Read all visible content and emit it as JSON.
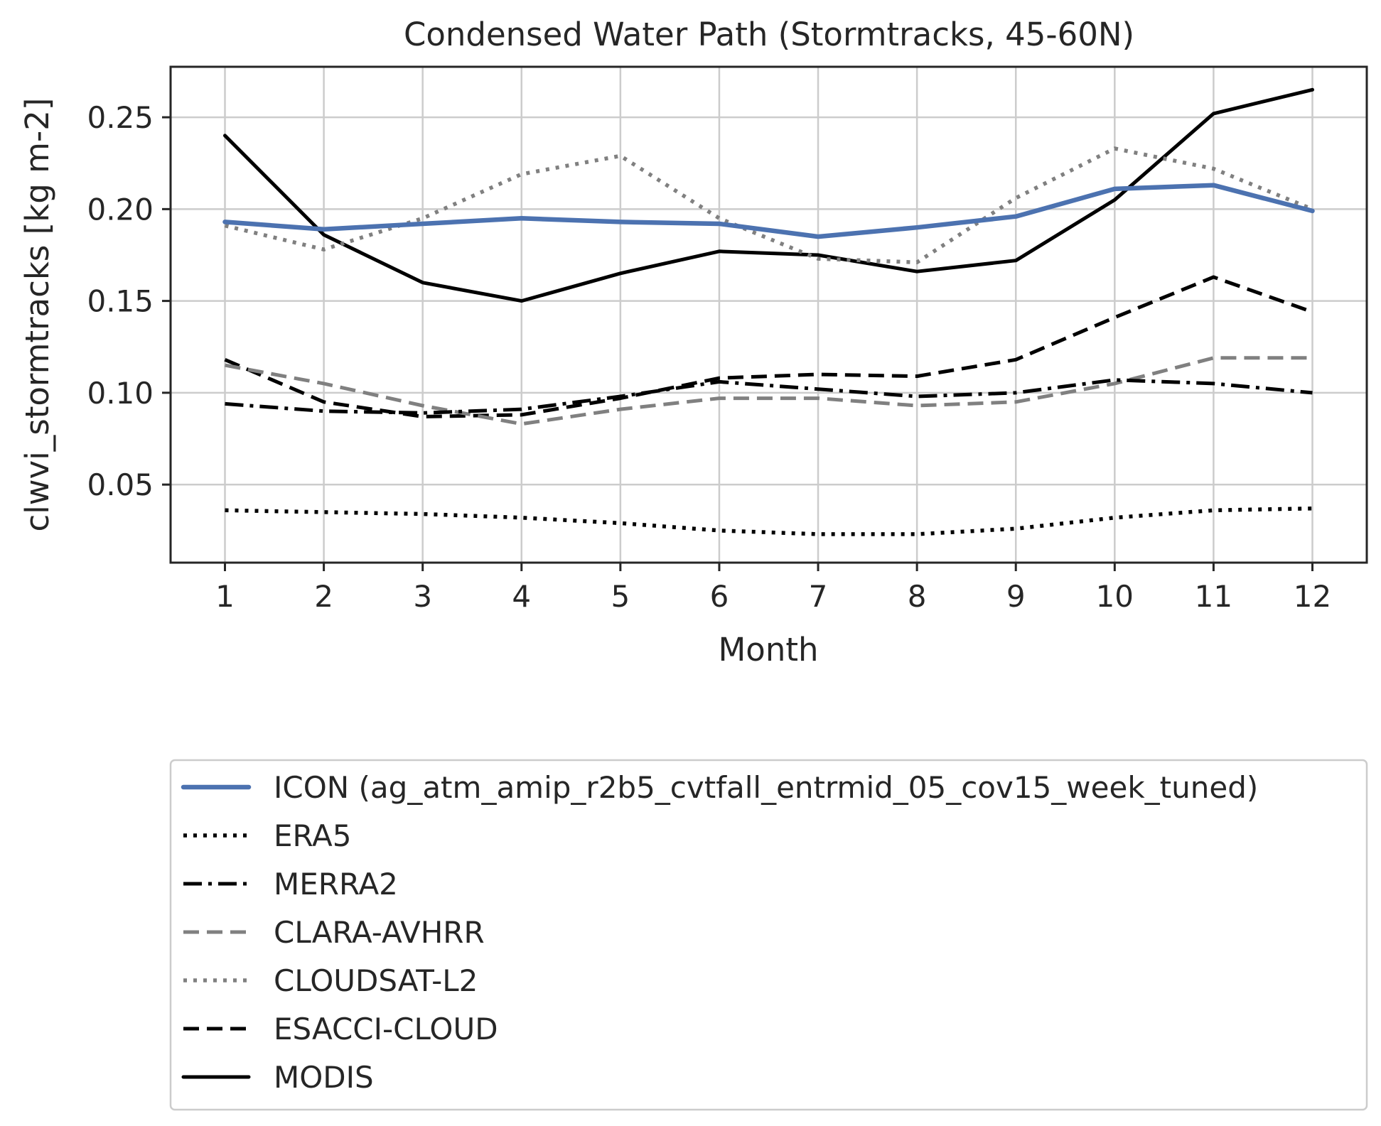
{
  "chart_data": {
    "type": "line",
    "title": "Condensed Water Path (Stormtracks, 45-60N)",
    "xlabel": "Month",
    "ylabel": "clwvi_stormtracks [kg m-2]",
    "x": [
      1,
      2,
      3,
      4,
      5,
      6,
      7,
      8,
      9,
      10,
      11,
      12
    ],
    "xticks": [
      "1",
      "2",
      "3",
      "4",
      "5",
      "6",
      "7",
      "8",
      "9",
      "10",
      "11",
      "12"
    ],
    "xlim": [
      0.45,
      12.55
    ],
    "ylim": [
      0.0075,
      0.2775
    ],
    "yticks": [
      0.05,
      0.1,
      0.15,
      0.2,
      0.25
    ],
    "ytick_labels": [
      "0.05",
      "0.10",
      "0.15",
      "0.20",
      "0.25"
    ],
    "grid": true,
    "legend_position": "below the plot",
    "series": [
      {
        "name": "ICON (ag_atm_amip_r2b5_cvtfall_entrmid_05_cov15_week_tuned)",
        "color": "#4c72b0",
        "style": "solid-thick",
        "values": [
          0.193,
          0.189,
          0.192,
          0.195,
          0.193,
          0.192,
          0.185,
          0.19,
          0.196,
          0.211,
          0.213,
          0.199
        ]
      },
      {
        "name": "ERA5",
        "color": "#000000",
        "style": "dotted",
        "values": [
          0.036,
          0.035,
          0.034,
          0.032,
          0.029,
          0.025,
          0.023,
          0.023,
          0.026,
          0.032,
          0.036,
          0.037
        ]
      },
      {
        "name": "MERRA2",
        "color": "#000000",
        "style": "dashdot",
        "values": [
          0.094,
          0.09,
          0.089,
          0.091,
          0.098,
          0.106,
          0.102,
          0.098,
          0.1,
          0.107,
          0.105,
          0.1
        ]
      },
      {
        "name": "CLARA-AVHRR",
        "color": "#808080",
        "style": "dashed",
        "values": [
          0.115,
          0.105,
          0.093,
          0.083,
          0.091,
          0.097,
          0.097,
          0.093,
          0.095,
          0.105,
          0.119,
          0.119
        ]
      },
      {
        "name": "CLOUDSAT-L2",
        "color": "#808080",
        "style": "dotted",
        "values": [
          0.191,
          0.178,
          0.195,
          0.219,
          0.229,
          0.195,
          0.173,
          0.171,
          0.206,
          0.233,
          0.222,
          0.2
        ]
      },
      {
        "name": "ESACCI-CLOUD",
        "color": "#000000",
        "style": "dashed",
        "values": [
          0.118,
          0.095,
          0.087,
          0.088,
          0.097,
          0.108,
          0.11,
          0.109,
          0.118,
          0.141,
          0.163,
          0.144
        ]
      },
      {
        "name": "MODIS",
        "color": "#000000",
        "style": "solid",
        "values": [
          0.24,
          0.186,
          0.16,
          0.15,
          0.165,
          0.177,
          0.175,
          0.166,
          0.172,
          0.205,
          0.252,
          0.265
        ]
      }
    ]
  }
}
